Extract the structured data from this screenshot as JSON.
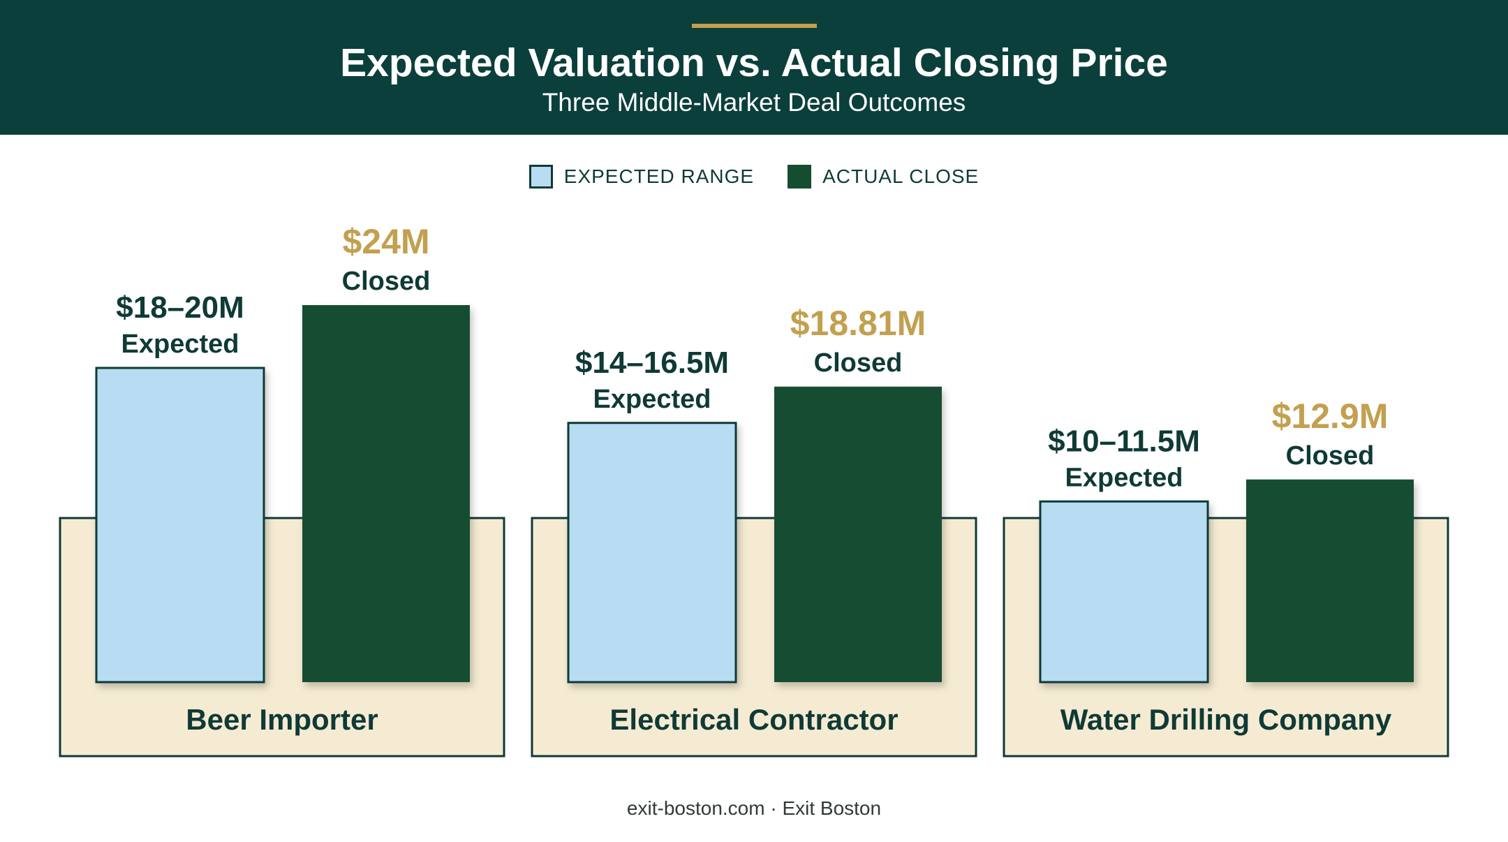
{
  "header": {
    "title": "Expected Valuation vs. Actual Closing Price",
    "subtitle": "Three Middle-Market Deal Outcomes"
  },
  "legend": {
    "expected_label": "EXPECTED RANGE",
    "actual_label": "ACTUAL CLOSE"
  },
  "colors": {
    "header_bg": "#0b3f3b",
    "accent": "#c3a04f",
    "expected_fill": "#b8dcf2",
    "actual_fill": "#154d31",
    "panel_fill": "#f5ebd3",
    "label_dark": "#0f3a36"
  },
  "chart_data": {
    "type": "bar",
    "title": "Expected Valuation vs. Actual Closing Price",
    "subtitle": "Three Middle-Market Deal Outcomes",
    "categories": [
      "Beer Importer",
      "Electrical Contractor",
      "Water Drilling Company"
    ],
    "series": [
      {
        "name": "EXPECTED RANGE",
        "ranges": [
          [
            18,
            20
          ],
          [
            14,
            16.5
          ],
          [
            10,
            11.5
          ]
        ],
        "values": [
          20,
          16.5,
          11.5
        ],
        "value_labels": [
          "$18–20M",
          "$14–16.5M",
          "$10–11.5M"
        ],
        "sub_label": "Expected"
      },
      {
        "name": "ACTUAL CLOSE",
        "values": [
          24,
          18.81,
          12.9
        ],
        "value_labels": [
          "$24M",
          "$18.81M",
          "$12.9M"
        ],
        "sub_label": "Closed"
      }
    ],
    "unit": "$M",
    "legend_position": "top-center",
    "grid": false
  },
  "footer": {
    "text": "exit-boston.com · Exit Boston"
  }
}
